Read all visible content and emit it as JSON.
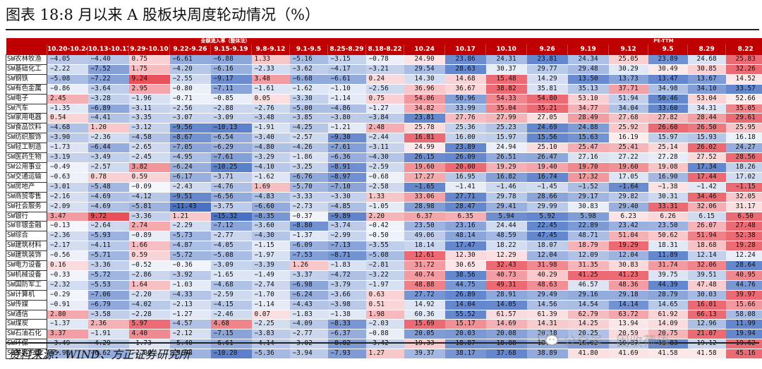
{
  "title": "图表 18:8 月以来 A 股板块周度轮动情况（%）",
  "group_headers": {
    "flow": "全额流入率（整体法）",
    "pe": "PE-TTM"
  },
  "flow_dates": [
    "10.20-10.24",
    "10.13-10.17",
    "9.29-10.10",
    "9.22-9.26",
    "9.15-9.19",
    "9.8-9.12",
    "9.1-9.5",
    "8.25-8.29",
    "8.18-8.22"
  ],
  "pe_dates": [
    "10.24",
    "10.17",
    "10.10",
    "9.26",
    "9.19",
    "9.12",
    "9.5",
    "8.29",
    "8.22"
  ],
  "rows": [
    {
      "name": "SW农林牧渔",
      "flow": [
        "−4.05",
        "−4.40",
        "0.75",
        "−6.61",
        "−6.88",
        "1.33",
        "−5.16",
        "−3.15",
        "−0.78"
      ],
      "pe": [
        "24.90",
        "23.86",
        "24.31",
        "23.81",
        "24.34",
        "25.05",
        "23.89",
        "24.68",
        "25.83"
      ]
    },
    {
      "name": "SW基础化工",
      "flow": [
        "−2.22",
        "−7.52",
        "1.75",
        "−4.20",
        "−6.16",
        "−2.33",
        "−3.62",
        "−4.17",
        "−3.21"
      ],
      "pe": [
        "29.54",
        "28.63",
        "30.37",
        "29.77",
        "29.48",
        "30.29",
        "30.49",
        "30.85",
        "32.26"
      ]
    },
    {
      "name": "SW钢铁",
      "flow": [
        "−5.08",
        "−7.22",
        "9.24",
        "−2.55",
        "−9.17",
        "3.48",
        "−6.68",
        "−6.61",
        "0.24"
      ],
      "pe": [
        "14.30",
        "14.68",
        "15.48",
        "14.29",
        "13.50",
        "13.73",
        "13.47",
        "13.67",
        "14.52"
      ]
    },
    {
      "name": "SW有色金属",
      "flow": [
        "−0.86",
        "−3.64",
        "2.95",
        "−0.80",
        "−7.11",
        "−1.61",
        "−1.62",
        "−1.10",
        "−2.56"
      ],
      "pe": [
        "36.96",
        "36.67",
        "38.82",
        "35.81",
        "35.13",
        "37.71",
        "34.98",
        "34.10",
        "33.57"
      ]
    },
    {
      "name": "SW电子",
      "flow": [
        "2.45",
        "−3.28",
        "−1.96",
        "−0.71",
        "−0.85",
        "0.05",
        "−3.30",
        "−1.14",
        "0.75"
      ],
      "pe": [
        "54.06",
        "50.96",
        "54.33",
        "54.80",
        "53.10",
        "51.94",
        "50.46",
        "53.04",
        "52.66"
      ]
    },
    {
      "name": "SW汽车",
      "flow": [
        "−1.35",
        "−6.89",
        "−3.11",
        "−2.56",
        "−2.88",
        "−2.76",
        "−5.00",
        "−4.86",
        "−1.27"
      ],
      "pe": [
        "34.82",
        "33.99",
        "35.04",
        "35.21",
        "34.77",
        "34.04",
        "33.60",
        "34.31",
        "35.05"
      ]
    },
    {
      "name": "SW家用电器",
      "flow": [
        "0.54",
        "−4.41",
        "−3.35",
        "−3.07",
        "−3.09",
        "−3.48",
        "−3.85",
        "−3.80",
        "−3.84"
      ],
      "pe": [
        "23.81",
        "27.76",
        "27.99",
        "27.05",
        "28.49",
        "27.68",
        "27.82",
        "28.44",
        "29.61"
      ]
    },
    {
      "name": "SW食品饮料",
      "flow": [
        "−4.68",
        "1.20",
        "−3.12",
        "−9.56",
        "−10.13",
        "−1.91",
        "−4.25",
        "−1.21",
        "2.48"
      ],
      "pe": [
        "25.78",
        "25.36",
        "25.23",
        "24.69",
        "24.88",
        "25.92",
        "26.60",
        "26.50",
        "25.95"
      ]
    },
    {
      "name": "SW纺织服饰",
      "flow": [
        "−3.90",
        "−2.36",
        "−4.58",
        "−8.67",
        "−6.54",
        "−3.40",
        "−2.57",
        "−9.30",
        "−2.44"
      ],
      "pe": [
        "16.81",
        "16.00",
        "15.97",
        "15.56",
        "15.63",
        "16.19",
        "15.97",
        "15.93",
        "16.18"
      ]
    },
    {
      "name": "SW轻工制造",
      "flow": [
        "−1.73",
        "−6.44",
        "−2.65",
        "−7.05",
        "−6.29",
        "−4.80",
        "−4.26",
        "−7.61",
        "−3.11"
      ],
      "pe": [
        "24.99",
        "23.89",
        "24.94",
        "25.10",
        "25.47",
        "25.41",
        "25.14",
        "26.02",
        "24.27"
      ]
    },
    {
      "name": "SW医药生物",
      "flow": [
        "−3.19",
        "−3.49",
        "−2.45",
        "−4.95",
        "−7.61",
        "−3.29",
        "−1.86",
        "−6.36",
        "−4.30"
      ],
      "pe": [
        "26.15",
        "26.09",
        "26.51",
        "26.47",
        "27.16",
        "27.22",
        "27.28",
        "27.52",
        "28.56"
      ]
    },
    {
      "name": "SW公用事业",
      "flow": [
        "−0.49",
        "−2.57",
        "3.82",
        "−6.24",
        "−10.25",
        "−4.10",
        "−3.25",
        "−8.91",
        "−2.59"
      ],
      "pe": [
        "19.60",
        "20.00",
        "19.29",
        "19.40",
        "19.70",
        "19.60",
        "19.08",
        "17.34",
        "18.26"
      ]
    },
    {
      "name": "SW交通运输",
      "flow": [
        "−0.63",
        "0.78",
        "0.59",
        "−6.17",
        "−3.71",
        "−1.62",
        "−6.76",
        "−8.97",
        "−0.68"
      ],
      "pe": [
        "17.27",
        "16.95",
        "16.82",
        "16.74",
        "17.32",
        "17.05",
        "16.90",
        "17.44",
        "17.02"
      ]
    },
    {
      "name": "SW房地产",
      "flow": [
        "−3.01",
        "−5.48",
        "−0.09",
        "−2.43",
        "−4.76",
        "1.69",
        "−5.70",
        "−7.10",
        "−2.58"
      ],
      "pe": [
        "−1.65",
        "−1.41",
        "−1.46",
        "−1.45",
        "−1.52",
        "−1.64",
        "−1.38",
        "−1.42",
        "−1.15"
      ]
    },
    {
      "name": "SW商贸零售",
      "flow": [
        "−2.16",
        "−4.69",
        "−4.12",
        "−9.51",
        "−6.56",
        "−4.83",
        "−3.33",
        "−3.30",
        "1.33"
      ],
      "pe": [
        "33.06",
        "27.71",
        "29.78",
        "28.66",
        "29.17",
        "29.82",
        "30.31",
        "34.46",
        "32.05"
      ]
    },
    {
      "name": "SW社会服务",
      "flow": [
        "−2.09",
        "−4.69",
        "−5.81",
        "−11.43",
        "−3.75",
        "−6.60",
        "−2.73",
        "−4.85",
        "−1.05"
      ],
      "pe": [
        "28.98",
        "28.47",
        "29.41",
        "29.99",
        "30.83",
        "29.40",
        "33.31",
        "32.06",
        "31.17"
      ]
    },
    {
      "name": "SW银行",
      "flow": [
        "3.47",
        "9.72",
        "−3.36",
        "1.21",
        "−15.32",
        "−8.35",
        "−0.37",
        "−9.89",
        "2.20"
      ],
      "pe": [
        "6.37",
        "6.35",
        "5.94",
        "5.92",
        "5.98",
        "6.23",
        "6.26",
        "6.15",
        "6.50"
      ]
    },
    {
      "name": "SW非银金融",
      "flow": [
        "−0.13",
        "−2.64",
        "2.74",
        "−2.29",
        "−7.12",
        "−3.60",
        "−8.80",
        "−3.74",
        "−0.42"
      ],
      "pe": [
        "23.50",
        "23.16",
        "24.44",
        "22.45",
        "22.89",
        "23.42",
        "23.50",
        "26.07",
        "27.48"
      ]
    },
    {
      "name": "SW综合",
      "flow": [
        "−2.36",
        "−5.93",
        "−0.89",
        "−5.73",
        "−2.77",
        "−4.30",
        "−1.37",
        "−2.99",
        "−0.50"
      ],
      "pe": [
        "49.06",
        "48.14",
        "48.59",
        "47.45",
        "48.71",
        "51.04",
        "50.62",
        "51.94",
        "52.38"
      ]
    },
    {
      "name": "SW建筑材料",
      "flow": [
        "−2.17",
        "−4.11",
        "1.66",
        "−4.87",
        "−4.05",
        "−1.15",
        "−6.09",
        "−7.13",
        "−3.55"
      ],
      "pe": [
        "18.14",
        "17.47",
        "18.22",
        "18.07",
        "18.79",
        "19.29",
        "18.31",
        "18.68",
        "19.28"
      ]
    },
    {
      "name": "SW建筑装饰",
      "flow": [
        "−0.56",
        "−5.71",
        "0.59",
        "−5.72",
        "−5.08",
        "−1.97",
        "−7.53",
        "−8.71",
        "−5.08"
      ],
      "pe": [
        "12.61",
        "12.30",
        "12.29",
        "12.04",
        "12.09",
        "12.04",
        "11.89",
        "12.14",
        "12.24"
      ]
    },
    {
      "name": "SW电力设备",
      "flow": [
        "0.16",
        "−3.36",
        "−0.52",
        "−0.36",
        "−3.09",
        "−3.39",
        "1.26",
        "−1.83",
        "−2.81"
      ],
      "pe": [
        "31.72",
        "30.65",
        "32.43",
        "31.98",
        "31.35",
        "30.83",
        "31.74",
        "32.06",
        "28.64"
      ]
    },
    {
      "name": "SW机械设备",
      "flow": [
        "−0.33",
        "−5.72",
        "−2.86",
        "−3.92",
        "−1.65",
        "−1.49",
        "−3.37",
        "−4.72",
        "−3.22"
      ],
      "pe": [
        "40.74",
        "38.56",
        "40.73",
        "40.29",
        "41.25",
        "41.23",
        "39.75",
        "39.51",
        "40.95"
      ]
    },
    {
      "name": "SW国防军工",
      "flow": [
        "−2.32",
        "−5.53",
        "1.64",
        "−1.03",
        "−4.68",
        "−2.74",
        "−6.98",
        "−3.79",
        "−1.97"
      ],
      "pe": [
        "48.88",
        "44.75",
        "49.31",
        "48.63",
        "46.57",
        "48.36",
        "44.39",
        "47.48",
        "44.76"
      ]
    },
    {
      "name": "SW计算机",
      "flow": [
        "−0.29",
        "−7.06",
        "−2.20",
        "−4.33",
        "−2.59",
        "−1.70",
        "−6.24",
        "−3.66",
        "0.63"
      ],
      "pe": [
        "27.72",
        "26.89",
        "28.91",
        "29.49",
        "29.16",
        "29.18",
        "28.79",
        "30.03",
        "39.97"
      ]
    },
    {
      "name": "SW传媒",
      "flow": [
        "−0.91",
        "−6.79",
        "−4.02",
        "−2.13",
        "−4.15",
        "−1.14",
        "−4.43",
        "−3.98",
        "0.51"
      ],
      "pe": [
        "14.92",
        "14.04",
        "14.05",
        "14.56",
        "14.54",
        "14.14",
        "14.65",
        "16.01",
        "15.66"
      ]
    },
    {
      "name": "SW通信",
      "flow": [
        "2.80",
        "−3.58",
        "−2.28",
        "−1.27",
        "−2.46",
        "0.07",
        "−1.83",
        "−1.38",
        "1.98"
      ],
      "pe": [
        "60.36",
        "55.52",
        "61.57",
        "61.39",
        "62.79",
        "63.72",
        "61.92",
        "66.13",
        "58.08"
      ]
    },
    {
      "name": "SW煤炭",
      "flow": [
        "−1.37",
        "2.36",
        "5.97",
        "−4.57",
        "4.68",
        "−2.25",
        "−4.09",
        "−8.33",
        "−2.03"
      ],
      "pe": [
        "15.69",
        "15.17",
        "14.69",
        "14.31",
        "14.25",
        "13.94",
        "14.09",
        "12.96",
        "11.99"
      ]
    },
    {
      "name": "SW石油石化",
      "flow": [
        "3.37",
        "−1.91",
        "4.40",
        "−2.12",
        "−7.15",
        "−3.83",
        "−2.77",
        "−6.37",
        "−0.88"
      ],
      "pe": [
        "20.05",
        "20.03",
        "20.08",
        "20.18",
        "20.25",
        "20.59",
        "20.75",
        "21.07",
        "19.94"
      ]
    },
    {
      "name": "SW环保",
      "flow": [
        "−3.49",
        "−4.29",
        "−1.73",
        "−5.40",
        "−6.61",
        "−4.14",
        "−3.02",
        "−8.02",
        "−3.42"
      ],
      "pe": [
        "19.33",
        "18.87",
        "18.88",
        "18.97",
        "18.92",
        "19.07",
        "18.83",
        "19.12",
        "19.62"
      ]
    },
    {
      "name": "SW美容护理",
      "flow": [
        "−5.98",
        "−6.62",
        "−2.09",
        "−5.98",
        "−10.20",
        "−5.36",
        "−3.94",
        "−7.93",
        "1.27"
      ],
      "pe": [
        "39.37",
        "38.17",
        "37.68",
        "38.89",
        "41.80",
        "41.69",
        "41.58",
        "41.58",
        "45.16"
      ]
    }
  ],
  "source": "资料来源：WIND、方正证券研究所",
  "watermark": "公众号 · 固收荷语",
  "colors": {
    "header_red": "#c00000",
    "pos_red": "#e8505a",
    "neg_blue": "#4a72c4"
  }
}
